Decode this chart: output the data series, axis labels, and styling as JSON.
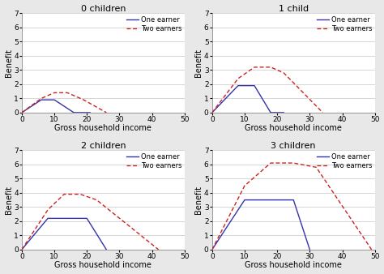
{
  "subplots": [
    {
      "title": "0 children",
      "one_earner": {
        "x": [
          0,
          6,
          10,
          16,
          21
        ],
        "y": [
          0,
          0.9,
          0.9,
          0.0,
          0.0
        ]
      },
      "two_earners": {
        "x": [
          0,
          6,
          10,
          14,
          19,
          26
        ],
        "y": [
          0,
          1.0,
          1.4,
          1.4,
          0.9,
          0.0
        ]
      }
    },
    {
      "title": "1 child",
      "one_earner": {
        "x": [
          0,
          8,
          13,
          18,
          22
        ],
        "y": [
          0,
          1.9,
          1.9,
          0.0,
          0.0
        ]
      },
      "two_earners": {
        "x": [
          0,
          8,
          13,
          18,
          22,
          34
        ],
        "y": [
          0,
          2.4,
          3.2,
          3.2,
          2.8,
          0.0
        ]
      }
    },
    {
      "title": "2 children",
      "one_earner": {
        "x": [
          0,
          8,
          13,
          20,
          26
        ],
        "y": [
          0,
          2.2,
          2.2,
          2.2,
          0.0
        ]
      },
      "two_earners": {
        "x": [
          0,
          8,
          13,
          18,
          23,
          42
        ],
        "y": [
          0,
          2.8,
          3.9,
          3.9,
          3.5,
          0.0
        ]
      }
    },
    {
      "title": "3 children",
      "one_earner": {
        "x": [
          0,
          10,
          16,
          25,
          30
        ],
        "y": [
          0,
          3.5,
          3.5,
          3.5,
          0.0
        ]
      },
      "two_earners": {
        "x": [
          0,
          10,
          18,
          25,
          32,
          49
        ],
        "y": [
          0,
          4.5,
          6.1,
          6.1,
          5.8,
          0.0
        ]
      }
    }
  ],
  "xlabel": "Gross household income",
  "ylabel": "Benefit",
  "xlim": [
    0,
    50
  ],
  "ylim": [
    0,
    7
  ],
  "yticks": [
    0,
    1,
    2,
    3,
    4,
    5,
    6,
    7
  ],
  "xticks": [
    0,
    10,
    20,
    30,
    40,
    50
  ],
  "one_earner_color": "#3333aa",
  "two_earners_color": "#cc2222",
  "legend_labels": [
    "One earner",
    "Two earners"
  ],
  "fig_facecolor": "#e8e8e8",
  "ax_facecolor": "#ffffff",
  "grid_color": "#d0d0d0",
  "spine_color": "#888888",
  "title_fontsize": 8,
  "label_fontsize": 7,
  "tick_fontsize": 6.5,
  "legend_fontsize": 6
}
